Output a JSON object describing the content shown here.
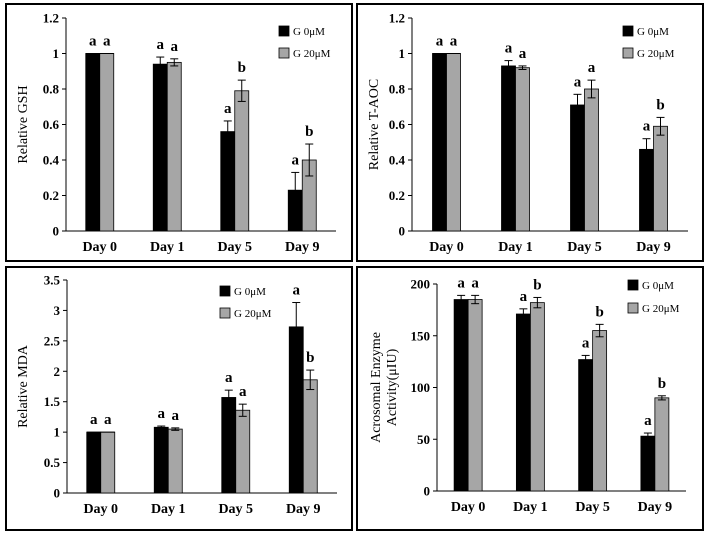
{
  "chart_data": [
    {
      "type": "bar",
      "ylabel": "Relative GSH",
      "categories": [
        "Day 0",
        "Day 1",
        "Day 5",
        "Day 9"
      ],
      "ylim": [
        0,
        1.2
      ],
      "yticks": [
        "0",
        "0.2",
        "0.4",
        "0.6",
        "0.8",
        "1",
        "1.2"
      ],
      "series": [
        {
          "name": "G 0μM",
          "values": [
            1.0,
            0.94,
            0.56,
            0.23
          ],
          "errors": [
            0,
            0.04,
            0.06,
            0.1
          ],
          "labels": [
            "a",
            "a",
            "a",
            "a"
          ]
        },
        {
          "name": "G 20μM",
          "values": [
            1.0,
            0.95,
            0.79,
            0.4
          ],
          "errors": [
            0,
            0.02,
            0.06,
            0.09
          ],
          "labels": [
            "a",
            "a",
            "b",
            "b"
          ]
        }
      ],
      "legend": "top-right"
    },
    {
      "type": "bar",
      "ylabel": "Relative T-AOC",
      "categories": [
        "Day 0",
        "Day 1",
        "Day 5",
        "Day 9"
      ],
      "ylim": [
        0,
        1.2
      ],
      "yticks": [
        "0",
        "0.2",
        "0.4",
        "0.6",
        "0.8",
        "1",
        "1.2"
      ],
      "series": [
        {
          "name": "G 0μM",
          "values": [
            1.0,
            0.93,
            0.71,
            0.46
          ],
          "errors": [
            0,
            0.03,
            0.06,
            0.06
          ],
          "labels": [
            "a",
            "a",
            "a",
            "a"
          ]
        },
        {
          "name": "G 20μM",
          "values": [
            1.0,
            0.92,
            0.8,
            0.59
          ],
          "errors": [
            0,
            0.01,
            0.05,
            0.05
          ],
          "labels": [
            "a",
            "a",
            "a",
            "b"
          ]
        }
      ],
      "legend": "top-right"
    },
    {
      "type": "bar",
      "ylabel": "Relative MDA",
      "categories": [
        "Day 0",
        "Day 1",
        "Day 5",
        "Day 9"
      ],
      "ylim": [
        0,
        3.5
      ],
      "yticks": [
        "0",
        "0.5",
        "1",
        "1.5",
        "2",
        "2.5",
        "3",
        "3.5"
      ],
      "series": [
        {
          "name": "G 0μM",
          "values": [
            1.0,
            1.08,
            1.57,
            2.73
          ],
          "errors": [
            0,
            0.02,
            0.12,
            0.4
          ],
          "labels": [
            "a",
            "a",
            "a",
            "a"
          ]
        },
        {
          "name": "G 20μM",
          "values": [
            1.0,
            1.05,
            1.36,
            1.86
          ],
          "errors": [
            0,
            0.02,
            0.1,
            0.16
          ],
          "labels": [
            "a",
            "a",
            "a",
            "b"
          ]
        }
      ],
      "legend": "top-right"
    },
    {
      "type": "bar",
      "ylabel": "Acrosomal Enzyme Activity(μIU)",
      "categories": [
        "Day 0",
        "Day 1",
        "Day 5",
        "Day 9"
      ],
      "ylim": [
        0,
        200
      ],
      "yticks": [
        "0",
        "50",
        "100",
        "150",
        "200"
      ],
      "series": [
        {
          "name": "G 0μM",
          "values": [
            185,
            171,
            127,
            53
          ],
          "errors": [
            4,
            5,
            4,
            3
          ],
          "labels": [
            "a",
            "a",
            "a",
            "a"
          ]
        },
        {
          "name": "G 20μM",
          "values": [
            185,
            182,
            155,
            90
          ],
          "errors": [
            4,
            5,
            6,
            2
          ],
          "labels": [
            "a",
            "b",
            "b",
            "b"
          ]
        }
      ],
      "legend": "top-right"
    }
  ],
  "colors": {
    "series0": "#000000",
    "series1": "#a6a6a6"
  }
}
